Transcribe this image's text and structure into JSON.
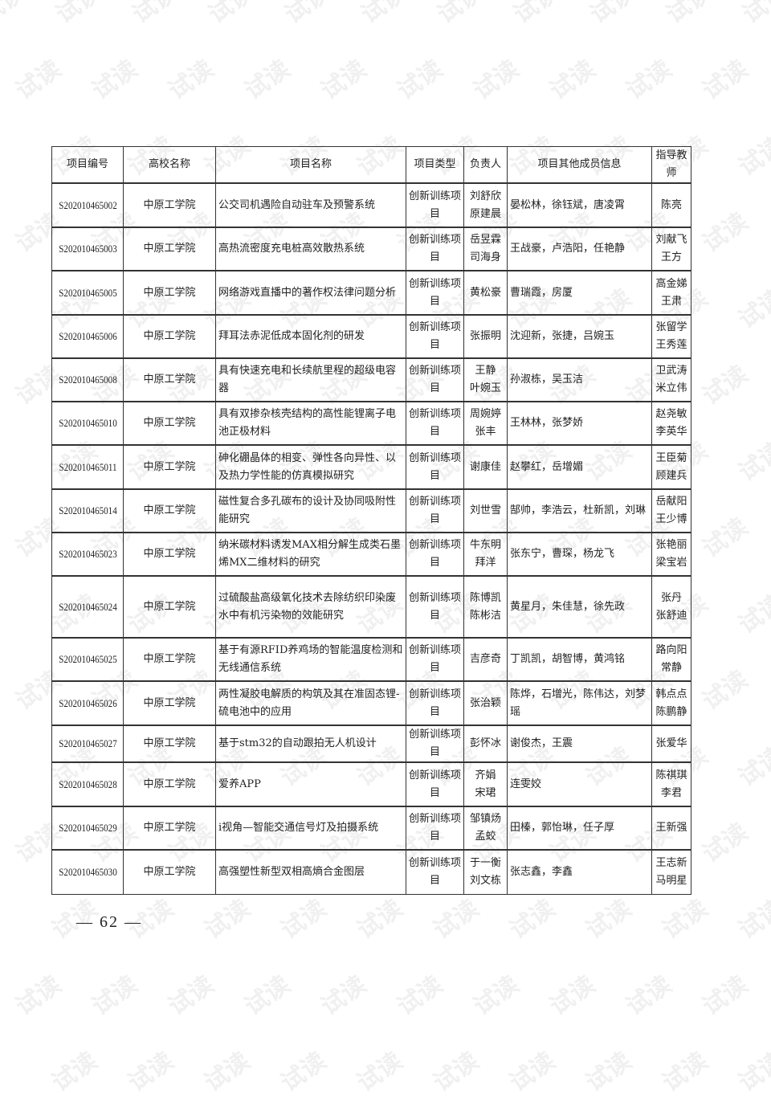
{
  "watermark_text": "试读",
  "table": {
    "headers": [
      "项目编号",
      "高校名称",
      "项目名称",
      "项目类型",
      "负责人",
      "项目其他成员信息",
      "指导教师"
    ],
    "rows": [
      {
        "id": "S202010465002",
        "school": "中原工学院",
        "name": "公交司机遇险自动驻车及预警系统",
        "type": "创新训练项目",
        "leader": [
          "刘舒欣",
          "原建晨"
        ],
        "members": "晏松林，徐钰斌，唐凌霄",
        "advisor": [
          "陈亮"
        ]
      },
      {
        "id": "S202010465003",
        "school": "中原工学院",
        "name": "高热流密度充电桩高效散热系统",
        "type": "创新训练项目",
        "leader": [
          "岳昱霖",
          "司海身"
        ],
        "members": "王战豪，卢浩阳，任艳静",
        "advisor": [
          "刘献飞",
          "王方"
        ]
      },
      {
        "id": "S202010465005",
        "school": "中原工学院",
        "name": "网络游戏直播中的著作权法律问题分析",
        "type": "创新训练项目",
        "leader": [
          "黄松豪"
        ],
        "members": "曹瑞霞，房厦",
        "advisor": [
          "高金娣",
          "王肃"
        ]
      },
      {
        "id": "S202010465006",
        "school": "中原工学院",
        "name": "拜耳法赤泥低成本固化剂的研发",
        "type": "创新训练项目",
        "leader": [
          "张振明"
        ],
        "members": "沈迎新，张捷，吕婉玉",
        "advisor": [
          "张留学",
          "王秀莲"
        ]
      },
      {
        "id": "S202010465008",
        "school": "中原工学院",
        "name": "具有快速充电和长续航里程的超级电容器",
        "type": "创新训练项目",
        "leader": [
          "王静",
          "叶婉玉"
        ],
        "members": "孙淑栋，吴玉洁",
        "advisor": [
          "卫武涛",
          "米立伟"
        ]
      },
      {
        "id": "S202010465010",
        "school": "中原工学院",
        "name": "具有双掺杂核壳结构的高性能锂离子电池正极材料",
        "type": "创新训练项目",
        "leader": [
          "周婉婷",
          "张丰"
        ],
        "members": "王林林，张梦娇",
        "advisor": [
          "赵尧敏",
          "李英华"
        ]
      },
      {
        "id": "S202010465011",
        "school": "中原工学院",
        "name": "砷化硼晶体的相变、弹性各向异性、以及热力学性能的仿真模拟研究",
        "type": "创新训练项目",
        "leader": [
          "谢康佳"
        ],
        "members": "赵攀红，岳增媚",
        "advisor": [
          "王臣菊",
          "顾建兵"
        ]
      },
      {
        "id": "S202010465014",
        "school": "中原工学院",
        "name": "磁性复合多孔碳布的设计及协同吸附性能研究",
        "type": "创新训练项目",
        "leader": [
          "刘世雪"
        ],
        "members": "郜帅，李浩云，杜新凯，刘琳",
        "advisor": [
          "岳献阳",
          "王少博"
        ]
      },
      {
        "id": "S202010465023",
        "school": "中原工学院",
        "name": "纳米碳材料诱发MAX相分解生成类石墨烯MX二维材料的研究",
        "type": "创新训练项目",
        "leader": [
          "牛东明",
          "拜洋"
        ],
        "members": "张东宁，曹琛，杨龙飞",
        "advisor": [
          "张艳丽",
          "梁宝岩"
        ]
      },
      {
        "id": "S202010465024",
        "school": "中原工学院",
        "name": "过硫酸盐高级氧化技术去除纺织印染废水中有机污染物的效能研究",
        "type": "创新训练项目",
        "leader": [
          "陈博凯",
          "陈彬洁"
        ],
        "members": "黄星月，朱佳慧，徐先政",
        "advisor": [
          "张丹",
          "张舒迪"
        ]
      },
      {
        "id": "S202010465025",
        "school": "中原工学院",
        "name": "基于有源RFID养鸡场的智能温度检测和无线通信系统",
        "type": "创新训练项目",
        "leader": [
          "吉彦奇"
        ],
        "members": "丁凯凯，胡智博，黄鸿铭",
        "advisor": [
          "路向阳",
          "常静"
        ]
      },
      {
        "id": "S202010465026",
        "school": "中原工学院",
        "name": "两性凝胶电解质的构筑及其在准固态锂-硫电池中的应用",
        "type": "创新训练项目",
        "leader": [
          "张治颖"
        ],
        "members": "陈烨，石增光，陈伟达，刘梦瑶",
        "advisor": [
          "韩点点",
          "陈鹏静"
        ]
      },
      {
        "id": "S202010465027",
        "school": "中原工学院",
        "name": "基于stm32的自动跟拍无人机设计",
        "type": "创新训练项目",
        "leader": [
          "彭怀冰"
        ],
        "members": "谢俊杰，王震",
        "advisor": [
          "张爱华"
        ]
      },
      {
        "id": "S202010465028",
        "school": "中原工学院",
        "name": "爱养APP",
        "type": "创新训练项目",
        "leader": [
          "齐娟",
          "宋珺"
        ],
        "members": "连雯姣",
        "advisor": [
          "陈祺琪",
          "李君"
        ]
      },
      {
        "id": "S202010465029",
        "school": "中原工学院",
        "name": "i视角—智能交通信号灯及拍摄系统",
        "type": "创新训练项目",
        "leader": [
          "邹镇炀",
          "孟蛟"
        ],
        "members": "田榛，郭怡琳，任子厚",
        "advisor": [
          "王新强"
        ]
      },
      {
        "id": "S202010465030",
        "school": "中原工学院",
        "name": "高强塑性新型双相高熵合金图层",
        "type": "创新训练项目",
        "leader": [
          "于一衡",
          "刘文栋"
        ],
        "members": "张志鑫，李鑫",
        "advisor": [
          "王志新",
          "马明星"
        ]
      }
    ]
  },
  "page_number": "— 62 —"
}
